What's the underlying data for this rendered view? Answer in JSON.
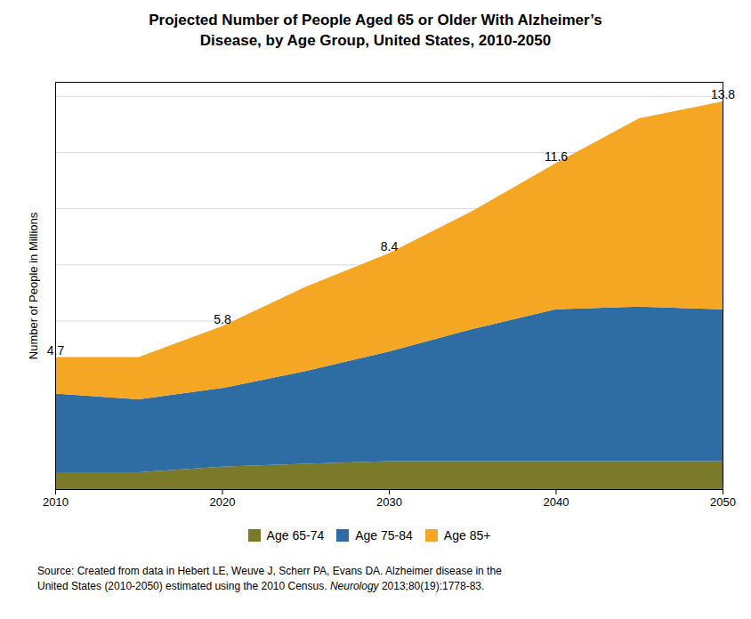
{
  "chart_data": {
    "type": "area",
    "stacked": true,
    "title": "Projected Number of People Aged 65 or Older With Alzheimer’s\nDisease, by Age Group, United States, 2010-2050",
    "ylabel": "Number of People in Millions",
    "x": [
      2010,
      2015,
      2020,
      2025,
      2030,
      2035,
      2040,
      2045,
      2050
    ],
    "series": [
      {
        "name": "Age 65-74",
        "color": "#7a7a28",
        "values": [
          0.6,
          0.6,
          0.8,
          0.9,
          1.0,
          1.0,
          1.0,
          1.0,
          1.0
        ]
      },
      {
        "name": "Age 75-84",
        "color": "#2d6da4",
        "values": [
          2.8,
          2.6,
          2.8,
          3.3,
          3.9,
          4.7,
          5.4,
          5.5,
          5.4
        ]
      },
      {
        "name": "Age 85+",
        "color": "#f5a623",
        "values": [
          1.3,
          1.5,
          2.2,
          3.0,
          3.5,
          4.2,
          5.2,
          6.7,
          7.4
        ]
      }
    ],
    "annotations": [
      {
        "x": 2010,
        "y": 4.7,
        "text": "4.7"
      },
      {
        "x": 2020,
        "y": 5.8,
        "text": "5.8"
      },
      {
        "x": 2030,
        "y": 8.4,
        "text": "8.4"
      },
      {
        "x": 2040,
        "y": 11.6,
        "text": "11.6"
      },
      {
        "x": 2050,
        "y": 13.8,
        "text": "13.8"
      }
    ],
    "xlim": [
      2010,
      2050
    ],
    "xticks": [
      2010,
      2020,
      2030,
      2040,
      2050
    ],
    "ylim": [
      0,
      14.5
    ],
    "yticks": [
      2,
      4,
      6,
      8,
      10,
      12,
      14
    ],
    "tick_labels": "x",
    "grid": true,
    "legend": "bottom",
    "caption": [
      "Source: Created from data in Hebert LE, Weuve J, Scherr PA, Evans DA. Alzheimer disease in the",
      "United States (2010-2050) estimated using the 2010 Census. Neurology 2013;80(19):1778-83."
    ],
    "caption_italic": "Neurology"
  }
}
